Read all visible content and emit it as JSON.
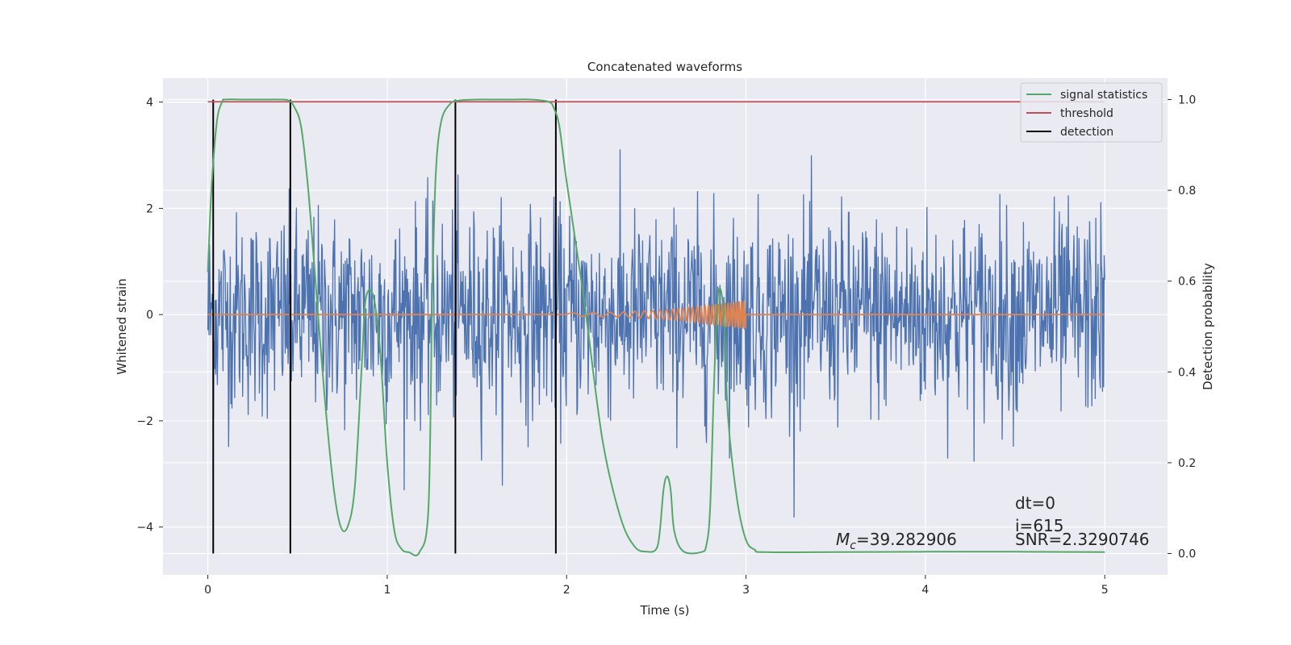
{
  "chart_data": {
    "type": "line",
    "title": "Concatenated waveforms",
    "xlabel": "Time (s)",
    "ylabel": "Whitened strain",
    "y2label": "Detection probability",
    "xlim": [
      -0.25,
      5.35
    ],
    "ylim": [
      -4.9,
      4.45
    ],
    "y2lim": [
      -0.047,
      1.047
    ],
    "xticks": [
      0,
      1,
      2,
      3,
      4,
      5
    ],
    "xtick_labels": [
      "0",
      "1",
      "2",
      "3",
      "4",
      "5"
    ],
    "yticks": [
      -4,
      -2,
      0,
      2,
      4
    ],
    "ytick_labels": [
      "−4",
      "−2",
      "0",
      "2",
      "4"
    ],
    "y2ticks": [
      0.0,
      0.2,
      0.4,
      0.6,
      0.8,
      1.0
    ],
    "y2tick_labels": [
      "0.0",
      "0.2",
      "0.4",
      "0.6",
      "0.8",
      "1.0"
    ],
    "grid": true,
    "legend_position": "top-right",
    "legend": [
      {
        "label": "signal statistics",
        "color": "#55a868"
      },
      {
        "label": "threshold",
        "color": "#c44e52"
      },
      {
        "label": "detection",
        "color": "#000000"
      }
    ],
    "noise_series": {
      "name": "whitened strain",
      "color": "#4c72b0",
      "x_range": [
        0,
        5
      ],
      "n_points": 1600,
      "std": 0.95
    },
    "injected_waveform": {
      "color": "#dd8452",
      "x_start": 2.0,
      "x_end": 3.0,
      "peak_amplitude": 0.27
    },
    "signal_statistics": {
      "axis": "right",
      "color": "#55a868",
      "x": [
        0,
        0.02,
        0.05,
        0.08,
        0.1,
        0.2,
        0.3,
        0.4,
        0.45,
        0.48,
        0.52,
        0.56,
        0.6,
        0.65,
        0.7,
        0.74,
        0.78,
        0.82,
        0.86,
        0.88,
        0.92,
        0.96,
        1.0,
        1.04,
        1.08,
        1.12,
        1.18,
        1.23,
        1.25,
        1.27,
        1.3,
        1.35,
        1.4,
        1.5,
        1.6,
        1.7,
        1.8,
        1.9,
        1.93,
        1.96,
        2.0,
        2.1,
        2.2,
        2.3,
        2.38,
        2.45,
        2.5,
        2.52,
        2.54,
        2.56,
        2.58,
        2.6,
        2.65,
        2.75,
        2.78,
        2.8,
        2.82,
        2.84,
        2.86,
        2.88,
        2.9,
        2.95,
        3.0,
        3.05,
        3.1,
        3.5,
        4.0,
        4.5,
        5.0
      ],
      "y": [
        0.62,
        0.8,
        0.95,
        0.995,
        1.0,
        1.0,
        1.0,
        1.0,
        0.998,
        0.985,
        0.94,
        0.8,
        0.6,
        0.35,
        0.15,
        0.06,
        0.06,
        0.15,
        0.43,
        0.56,
        0.57,
        0.45,
        0.2,
        0.05,
        0.01,
        0.003,
        0.003,
        0.1,
        0.55,
        0.83,
        0.95,
        0.99,
        0.998,
        1.0,
        1.0,
        1.0,
        1.0,
        0.995,
        0.98,
        0.94,
        0.82,
        0.55,
        0.25,
        0.08,
        0.015,
        0.004,
        0.01,
        0.05,
        0.14,
        0.17,
        0.14,
        0.05,
        0.005,
        0.003,
        0.02,
        0.1,
        0.35,
        0.55,
        0.58,
        0.5,
        0.3,
        0.12,
        0.03,
        0.008,
        0.003,
        0.003,
        0.004,
        0.004,
        0.003
      ]
    },
    "threshold": {
      "axis": "right",
      "color": "#c44e52",
      "x_range": [
        0,
        5
      ],
      "value": 0.995
    },
    "detections": {
      "color": "#000000",
      "x": [
        0.03,
        0.46,
        1.38,
        1.94
      ]
    },
    "annotations": {
      "mc_symbol": "M",
      "mc_subscript": "c",
      "mc_value": "=39.282906",
      "dt": "dt=0",
      "i": "i=615",
      "snr": "SNR=2.3290746"
    }
  }
}
